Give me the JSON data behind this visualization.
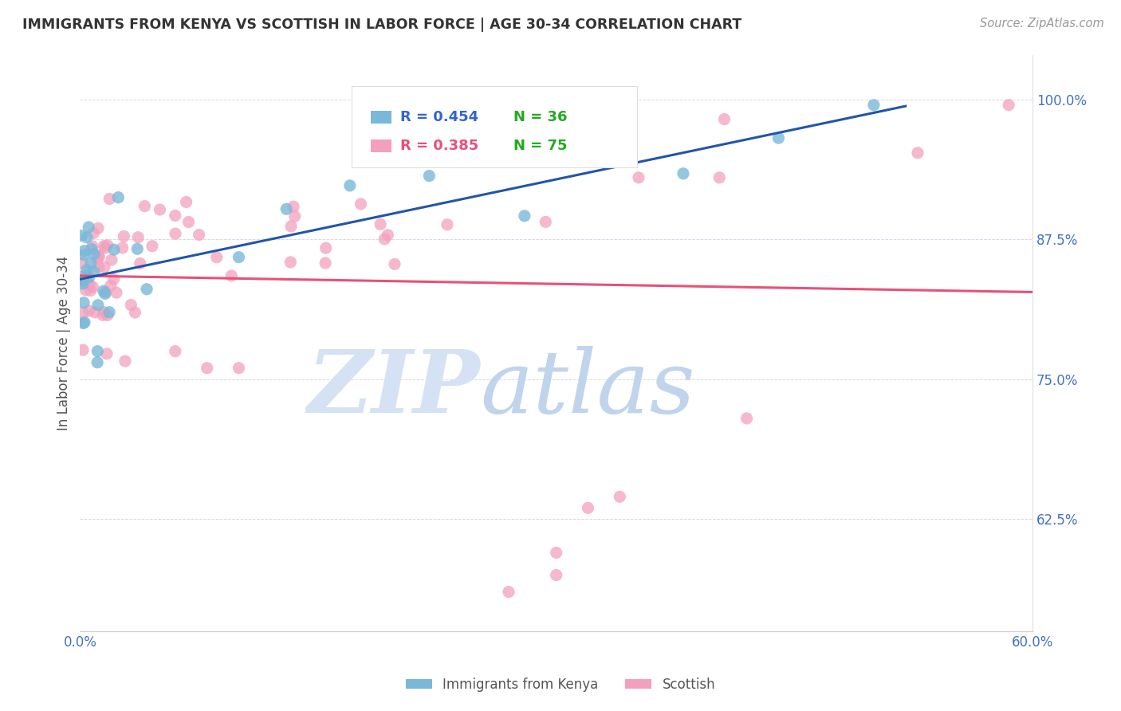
{
  "title": "IMMIGRANTS FROM KENYA VS SCOTTISH IN LABOR FORCE | AGE 30-34 CORRELATION CHART",
  "source": "Source: ZipAtlas.com",
  "ylabel": "In Labor Force | Age 30-34",
  "xlim": [
    0.0,
    0.6
  ],
  "ylim": [
    0.525,
    1.04
  ],
  "yticks": [
    0.625,
    0.75,
    0.875,
    1.0
  ],
  "yticklabels": [
    "62.5%",
    "75.0%",
    "87.5%",
    "100.0%"
  ],
  "kenya_color": "#7ab8d9",
  "scottish_color": "#f4a0bc",
  "kenya_line_color": "#2255aa",
  "scottish_line_color": "#e8507a",
  "kenya_R": 0.454,
  "kenya_N": 36,
  "scottish_R": 0.385,
  "scottish_N": 75,
  "background_color": "#ffffff",
  "grid_color": "#d8d8e8",
  "axis_color": "#4472c4",
  "title_color": "#333333",
  "watermark_zip_color": "#ccd8ee",
  "watermark_atlas_color": "#aac0e0",
  "legend_R_kenya_color": "#3366cc",
  "legend_R_scottish_color": "#e8507a",
  "legend_N_color": "#22aa22"
}
